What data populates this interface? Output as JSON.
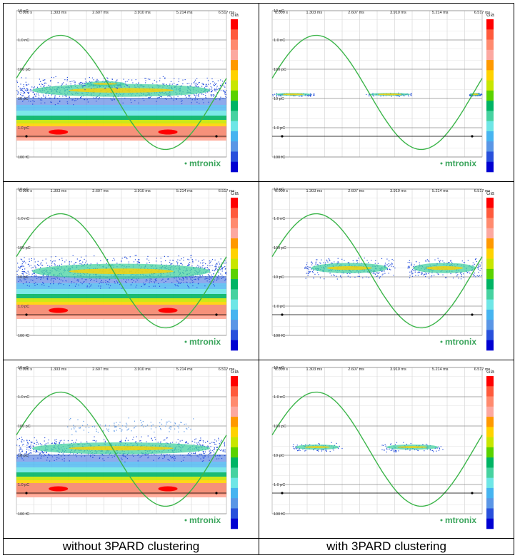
{
  "captions": {
    "left": "without 3PARD clustering",
    "right": "with 3PARD clustering"
  },
  "plot_labels": {
    "x_ticks": [
      "0.000 s",
      "1.303 ms",
      "2.607 ms",
      "3.910 ms",
      "5.214 ms",
      "6.517 ms"
    ],
    "y_ticks": [
      "10 nC",
      "1.0 nC",
      "100 pC",
      "10 pC",
      "1.0 pC",
      "100 fC"
    ],
    "logo": "mtronix",
    "colorbar_label": "Gia"
  },
  "colors": {
    "sine": "#3cb54a",
    "colorbar": [
      "#ff0000",
      "#ff5a3c",
      "#ff8a6e",
      "#fca8a0",
      "#ff9900",
      "#ffd200",
      "#c8e600",
      "#5ad200",
      "#00b464",
      "#46d2a0",
      "#6ee6e6",
      "#46b4f0",
      "#5a96e6",
      "#2850dc",
      "#0000d2"
    ]
  },
  "chart_data": [
    {
      "type": "heatmap",
      "panel": "no-clustering",
      "row": 1,
      "col": "left",
      "xlim": [
        0,
        6.517
      ],
      "x_unit": "ms",
      "y_scale": "log",
      "ylim_c": [
        1e-13,
        1e-08
      ],
      "phase_reference": "sine",
      "clusters": [
        {
          "kind": "noise-band",
          "y_c": 1e-12,
          "intensity": "high"
        },
        {
          "kind": "pd-cloud",
          "x_ms": [
            0.0,
            6.5
          ],
          "y_c": [
            6e-12,
            6e-11
          ],
          "intensity": "medium"
        },
        {
          "kind": "pd-cloud",
          "x_ms": [
            2.0,
            3.5
          ],
          "y_c": [
            2e-11,
            5e-11
          ],
          "intensity": "medium"
        }
      ]
    },
    {
      "type": "heatmap",
      "panel": "with-clustering",
      "row": 1,
      "col": "right",
      "xlim": [
        0,
        6.517
      ],
      "x_unit": "ms",
      "y_scale": "log",
      "ylim_c": [
        1e-13,
        1e-08
      ],
      "phase_reference": "sine",
      "clusters": [
        {
          "kind": "pd-cloud",
          "x_ms": [
            0.0,
            1.3
          ],
          "y_c": [
            1.2e-11,
            1.6e-11
          ],
          "intensity": "medium"
        },
        {
          "kind": "pd-cloud",
          "x_ms": [
            2.9,
            4.4
          ],
          "y_c": [
            1.2e-11,
            1.6e-11
          ],
          "intensity": "medium"
        },
        {
          "kind": "pd-cloud",
          "x_ms": [
            6.1,
            6.5
          ],
          "y_c": [
            1.2e-11,
            1.6e-11
          ],
          "intensity": "medium"
        }
      ]
    },
    {
      "type": "heatmap",
      "panel": "no-clustering",
      "row": 2,
      "col": "left",
      "xlim": [
        0,
        6.517
      ],
      "x_unit": "ms",
      "y_scale": "log",
      "ylim_c": [
        1e-13,
        1e-08
      ],
      "phase_reference": "sine",
      "clusters": [
        {
          "kind": "noise-band",
          "y_c": 1e-12,
          "intensity": "high"
        },
        {
          "kind": "pd-cloud",
          "x_ms": [
            0.0,
            6.5
          ],
          "y_c": [
            4e-12,
            6e-11
          ],
          "intensity": "medium"
        }
      ]
    },
    {
      "type": "heatmap",
      "panel": "with-clustering",
      "row": 2,
      "col": "right",
      "xlim": [
        0,
        6.517
      ],
      "x_unit": "ms",
      "y_scale": "log",
      "ylim_c": [
        1e-13,
        1e-08
      ],
      "phase_reference": "sine",
      "clusters": [
        {
          "kind": "pd-cloud",
          "x_ms": [
            1.0,
            3.8
          ],
          "y_c": [
            8e-12,
            5e-11
          ],
          "intensity": "medium"
        },
        {
          "kind": "pd-cloud",
          "x_ms": [
            4.2,
            6.5
          ],
          "y_c": [
            8e-12,
            5e-11
          ],
          "intensity": "medium"
        }
      ]
    },
    {
      "type": "heatmap",
      "panel": "no-clustering",
      "row": 3,
      "col": "left",
      "xlim": [
        0,
        6.517
      ],
      "x_unit": "ms",
      "y_scale": "log",
      "ylim_c": [
        1e-13,
        1e-08
      ],
      "phase_reference": "sine",
      "clusters": [
        {
          "kind": "noise-band",
          "y_c": 1e-12,
          "intensity": "high"
        },
        {
          "kind": "pd-cloud",
          "x_ms": [
            0.0,
            6.5
          ],
          "y_c": [
            6e-12,
            5e-11
          ],
          "intensity": "medium"
        },
        {
          "kind": "sparse-cloud",
          "x_ms": [
            1.5,
            5.5
          ],
          "y_c": [
            5e-11,
            2e-10
          ],
          "intensity": "low"
        }
      ]
    },
    {
      "type": "heatmap",
      "panel": "with-clustering",
      "row": 3,
      "col": "right",
      "xlim": [
        0,
        6.517
      ],
      "x_unit": "ms",
      "y_scale": "log",
      "ylim_c": [
        1e-13,
        1e-08
      ],
      "phase_reference": "sine",
      "clusters": [
        {
          "kind": "pd-cloud",
          "x_ms": [
            0.6,
            2.2
          ],
          "y_c": [
            1.2e-11,
            3e-11
          ],
          "intensity": "medium"
        },
        {
          "kind": "pd-cloud",
          "x_ms": [
            3.4,
            5.3
          ],
          "y_c": [
            1.2e-11,
            3e-11
          ],
          "intensity": "medium"
        }
      ]
    }
  ]
}
